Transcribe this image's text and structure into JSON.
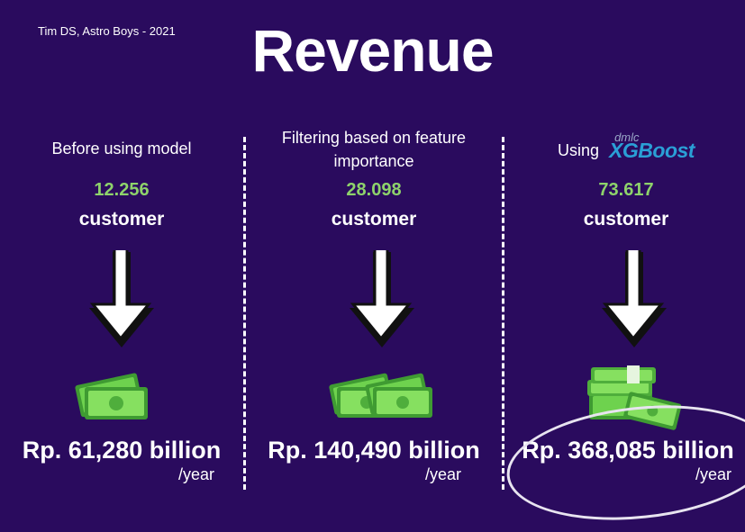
{
  "credit": "Tim DS, Astro Boys - 2021",
  "title": "Revenue",
  "columns": [
    {
      "heading": "Before using model",
      "count": "12.256",
      "unit": "customer",
      "amount": "Rp. 61,280 billion",
      "per": "/year",
      "money_icon": "single-banknote-icon"
    },
    {
      "heading": "Filtering based on feature importance",
      "count": "28.098",
      "unit": "customer",
      "amount": "Rp. 140,490 billion",
      "per": "/year",
      "money_icon": "double-banknote-icon"
    },
    {
      "heading": "Using",
      "logo_small": "dmlc",
      "logo_brand": "XGBoost",
      "count": "73.617",
      "unit": "customer",
      "amount": "Rp. 368,085 billion",
      "per": "/year",
      "money_icon": "money-stack-icon"
    }
  ],
  "colors": {
    "background": "#2a0b5e",
    "count": "#8ed36b",
    "brand": "#2a9fd6"
  }
}
